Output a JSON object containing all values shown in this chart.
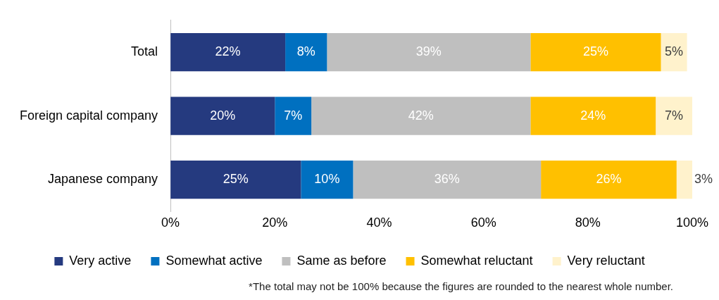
{
  "chart_data": {
    "type": "bar",
    "orientation": "horizontal",
    "stacked": true,
    "categories": [
      "Total",
      "Foreign capital company",
      "Japanese company"
    ],
    "series": [
      {
        "name": "Very active",
        "color": "#253a7f",
        "values": [
          22,
          20,
          25
        ],
        "value_labels": [
          "22%",
          "20%",
          "25%"
        ]
      },
      {
        "name": "Somewhat active",
        "color": "#0070c0",
        "values": [
          8,
          7,
          10
        ],
        "value_labels": [
          "8%",
          "7%",
          "10%"
        ]
      },
      {
        "name": "Same as before",
        "color": "#bfbfbf",
        "values": [
          39,
          42,
          36
        ],
        "value_labels": [
          "39%",
          "42%",
          "36%"
        ]
      },
      {
        "name": "Somewhat reluctant",
        "color": "#ffc000",
        "values": [
          25,
          24,
          26
        ],
        "value_labels": [
          "25%",
          "24%",
          "26%"
        ]
      },
      {
        "name": "Very reluctant",
        "color": "#fff2cc",
        "values": [
          5,
          7,
          3
        ],
        "value_labels": [
          "5%",
          "7%",
          "3%"
        ]
      }
    ],
    "xlim": [
      0,
      100
    ],
    "xticks": [
      {
        "value": 0,
        "label": "0%"
      },
      {
        "value": 20,
        "label": "20%"
      },
      {
        "value": 40,
        "label": "40%"
      },
      {
        "value": 60,
        "label": "60%"
      },
      {
        "value": 80,
        "label": "80%"
      },
      {
        "value": 100,
        "label": "100%"
      }
    ],
    "grid": false,
    "legend": "bottom",
    "annotations": [
      "*The total may not be 100% because the figures are rounded to the nearest whole number."
    ]
  }
}
